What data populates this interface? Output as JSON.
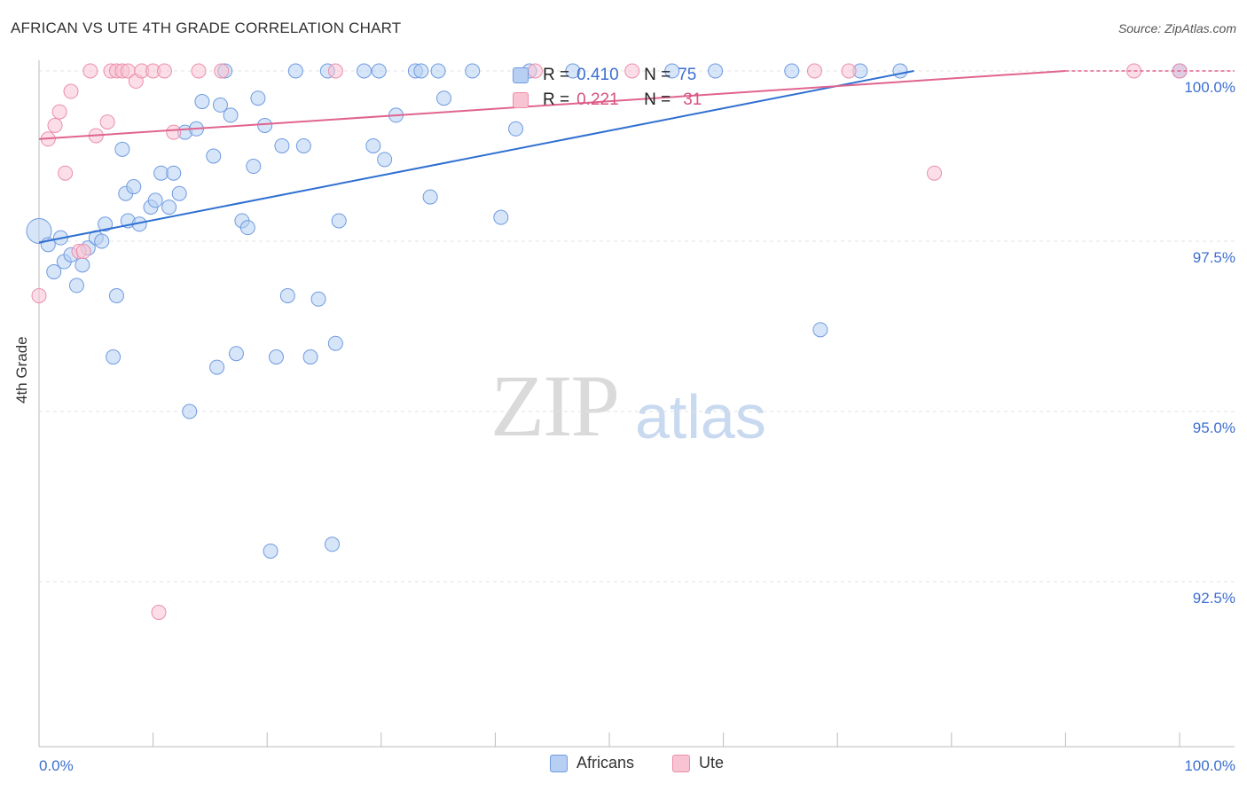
{
  "header": {
    "title": "AFRICAN VS UTE 4TH GRADE CORRELATION CHART",
    "source": "Source: ZipAtlas.com"
  },
  "watermark": {
    "zip": "ZIP",
    "atlas": "atlas"
  },
  "stats": {
    "africans": {
      "r_label": "R =",
      "r": "0.410",
      "n_label": "N =",
      "n": "75"
    },
    "ute": {
      "r_label": "R =",
      "r": "0.221",
      "n_label": "N =",
      "n": "31"
    }
  },
  "legend": {
    "africans": "Africans",
    "ute": "Ute"
  },
  "colors": {
    "africans_fill": "#b7cff3",
    "africans_stroke": "#6f9be0",
    "africans_line": "#2f6fd1",
    "ute_fill": "#f8c3d3",
    "ute_stroke": "#eb8faa",
    "ute_line": "#e0648f",
    "axis_text": "#3d6fd1",
    "grid": "#e3e3e3"
  },
  "chart_data": {
    "type": "scatter",
    "title": "AFRICAN VS UTE 4TH GRADE CORRELATION CHART",
    "xlabel": "",
    "ylabel": "4th Grade",
    "xlim": [
      0,
      100
    ],
    "ylim": [
      90.25,
      100.6
    ],
    "x_tick_labels": [
      "0.0%",
      "100.0%"
    ],
    "y_ticks": [
      100.0,
      97.5,
      95.0,
      92.5
    ],
    "y_tick_labels": [
      "100.0%",
      "97.5%",
      "95.0%",
      "92.5%"
    ],
    "grid": true,
    "legend_position": "bottom-center",
    "series": [
      {
        "name": "Africans",
        "r": 0.41,
        "n": 75,
        "trend": {
          "x": [
            0,
            76.7
          ],
          "y": [
            97.48,
            100.0
          ]
        },
        "points": [
          [
            0.0,
            97.65
          ],
          [
            0.8,
            97.45
          ],
          [
            1.3,
            97.05
          ],
          [
            1.9,
            97.55
          ],
          [
            2.2,
            97.2
          ],
          [
            2.8,
            97.3
          ],
          [
            3.3,
            96.85
          ],
          [
            3.8,
            97.15
          ],
          [
            4.3,
            97.4
          ],
          [
            5.0,
            97.55
          ],
          [
            5.5,
            97.5
          ],
          [
            5.8,
            97.75
          ],
          [
            6.5,
            95.8
          ],
          [
            6.8,
            96.7
          ],
          [
            7.3,
            98.85
          ],
          [
            7.6,
            98.2
          ],
          [
            7.8,
            97.8
          ],
          [
            8.3,
            98.3
          ],
          [
            8.8,
            97.75
          ],
          [
            9.8,
            98.0
          ],
          [
            10.2,
            98.1
          ],
          [
            10.7,
            98.5
          ],
          [
            11.4,
            98.0
          ],
          [
            11.8,
            98.5
          ],
          [
            12.3,
            98.2
          ],
          [
            12.8,
            99.1
          ],
          [
            13.2,
            95.0
          ],
          [
            13.8,
            99.15
          ],
          [
            14.3,
            99.55
          ],
          [
            15.3,
            98.75
          ],
          [
            15.6,
            95.65
          ],
          [
            15.9,
            99.5
          ],
          [
            16.3,
            100.0
          ],
          [
            16.8,
            99.35
          ],
          [
            17.3,
            95.85
          ],
          [
            17.8,
            97.8
          ],
          [
            18.3,
            97.7
          ],
          [
            18.8,
            98.6
          ],
          [
            19.2,
            99.6
          ],
          [
            19.8,
            99.2
          ],
          [
            20.3,
            92.95
          ],
          [
            20.8,
            95.8
          ],
          [
            21.3,
            98.9
          ],
          [
            21.8,
            96.7
          ],
          [
            22.5,
            100.0
          ],
          [
            23.2,
            98.9
          ],
          [
            23.8,
            95.8
          ],
          [
            24.5,
            96.65
          ],
          [
            25.3,
            100.0
          ],
          [
            25.7,
            93.05
          ],
          [
            26.0,
            96.0
          ],
          [
            26.3,
            97.8
          ],
          [
            28.5,
            100.0
          ],
          [
            29.3,
            98.9
          ],
          [
            29.8,
            100.0
          ],
          [
            30.3,
            98.7
          ],
          [
            31.3,
            99.35
          ],
          [
            33.0,
            100.0
          ],
          [
            33.5,
            100.0
          ],
          [
            34.3,
            98.15
          ],
          [
            35.0,
            100.0
          ],
          [
            35.5,
            99.6
          ],
          [
            38.0,
            100.0
          ],
          [
            40.5,
            97.85
          ],
          [
            41.8,
            99.15
          ],
          [
            43.0,
            100.0
          ],
          [
            46.8,
            100.0
          ],
          [
            55.5,
            100.0
          ],
          [
            59.3,
            100.0
          ],
          [
            66.0,
            100.0
          ],
          [
            68.5,
            96.2
          ],
          [
            72.0,
            100.0
          ],
          [
            75.5,
            100.0
          ],
          [
            100.0,
            100.0
          ],
          [
            100.0,
            100.0
          ]
        ]
      },
      {
        "name": "Ute",
        "r": 0.221,
        "n": 31,
        "trend": {
          "x": [
            0,
            90
          ],
          "y": [
            99.0,
            100.0
          ]
        },
        "points": [
          [
            0.0,
            96.7
          ],
          [
            0.8,
            99.0
          ],
          [
            1.4,
            99.2
          ],
          [
            1.8,
            99.4
          ],
          [
            2.3,
            98.5
          ],
          [
            2.8,
            99.7
          ],
          [
            3.5,
            97.35
          ],
          [
            3.9,
            97.35
          ],
          [
            4.5,
            100.0
          ],
          [
            5.0,
            99.05
          ],
          [
            6.0,
            99.25
          ],
          [
            6.3,
            100.0
          ],
          [
            6.8,
            100.0
          ],
          [
            7.3,
            100.0
          ],
          [
            7.8,
            100.0
          ],
          [
            8.5,
            99.85
          ],
          [
            9.0,
            100.0
          ],
          [
            10.0,
            100.0
          ],
          [
            10.5,
            92.05
          ],
          [
            11.0,
            100.0
          ],
          [
            11.8,
            99.1
          ],
          [
            14.0,
            100.0
          ],
          [
            16.0,
            100.0
          ],
          [
            26.0,
            100.0
          ],
          [
            43.5,
            100.0
          ],
          [
            52.0,
            100.0
          ],
          [
            68.0,
            100.0
          ],
          [
            71.0,
            100.0
          ],
          [
            78.5,
            98.5
          ],
          [
            96.0,
            100.0
          ],
          [
            100.0,
            100.0
          ]
        ]
      }
    ]
  }
}
